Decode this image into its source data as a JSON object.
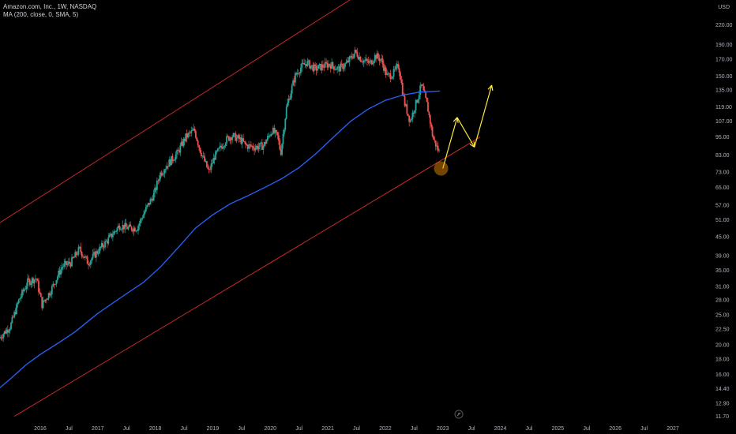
{
  "header": {
    "symbol_line": "Amazon.com, Inc., 1W, NASDAQ",
    "indicator_line": "MA (200, close, 0, SMA, 5)",
    "currency": "USD"
  },
  "colors": {
    "background": "#000000",
    "up": "#26a69a",
    "down": "#ef5350",
    "ma": "#2962ff",
    "channel": "#c62828",
    "projection": "#ffeb3b",
    "highlight": "#ff9800",
    "axis_text": "#b2b5be"
  },
  "chart_data": {
    "type": "candlestick",
    "scale": "log",
    "y_ticks": [
      11.7,
      12.9,
      14.4,
      16.0,
      18.0,
      20.0,
      22.5,
      25.0,
      28.0,
      31.0,
      35.0,
      39.0,
      45.0,
      51.0,
      57.0,
      65.0,
      73.0,
      83.0,
      95.0,
      107.0,
      119.0,
      135.0,
      150.0,
      170.0,
      190.0,
      220.0
    ],
    "ylim": [
      11.0,
      250.0
    ],
    "x_labels": [
      "2016",
      "Jul",
      "2017",
      "Jul",
      "2018",
      "Jul",
      "2019",
      "Jul",
      "2020",
      "Jul",
      "2021",
      "Jul",
      "2022",
      "Jul",
      "2023",
      "Jul",
      "2024",
      "Jul",
      "2025",
      "Jul",
      "2026",
      "Jul",
      "2027"
    ],
    "xlim": [
      2015.3,
      2027.7
    ],
    "price_path": [
      [
        2015.3,
        21
      ],
      [
        2015.5,
        23
      ],
      [
        2015.65,
        28
      ],
      [
        2015.8,
        32
      ],
      [
        2015.95,
        33
      ],
      [
        2016.05,
        27
      ],
      [
        2016.2,
        30
      ],
      [
        2016.4,
        36
      ],
      [
        2016.55,
        37
      ],
      [
        2016.7,
        41
      ],
      [
        2016.85,
        37
      ],
      [
        2017.0,
        40
      ],
      [
        2017.2,
        44
      ],
      [
        2017.4,
        49
      ],
      [
        2017.55,
        48
      ],
      [
        2017.7,
        48
      ],
      [
        2017.85,
        55
      ],
      [
        2018.0,
        62
      ],
      [
        2018.1,
        72
      ],
      [
        2018.25,
        78
      ],
      [
        2018.4,
        84
      ],
      [
        2018.55,
        95
      ],
      [
        2018.7,
        100
      ],
      [
        2018.8,
        86
      ],
      [
        2018.95,
        73
      ],
      [
        2019.05,
        82
      ],
      [
        2019.25,
        93
      ],
      [
        2019.35,
        96
      ],
      [
        2019.5,
        93
      ],
      [
        2019.6,
        89
      ],
      [
        2019.75,
        88
      ],
      [
        2019.9,
        89
      ],
      [
        2020.05,
        100
      ],
      [
        2020.15,
        95
      ],
      [
        2020.2,
        84
      ],
      [
        2020.3,
        118
      ],
      [
        2020.45,
        150
      ],
      [
        2020.55,
        160
      ],
      [
        2020.65,
        166
      ],
      [
        2020.8,
        158
      ],
      [
        2020.95,
        162
      ],
      [
        2021.05,
        164
      ],
      [
        2021.2,
        158
      ],
      [
        2021.35,
        165
      ],
      [
        2021.5,
        180
      ],
      [
        2021.6,
        170
      ],
      [
        2021.75,
        165
      ],
      [
        2021.85,
        175
      ],
      [
        2021.95,
        169
      ],
      [
        2022.05,
        150
      ],
      [
        2022.15,
        152
      ],
      [
        2022.25,
        163
      ],
      [
        2022.35,
        123
      ],
      [
        2022.45,
        107
      ],
      [
        2022.55,
        122
      ],
      [
        2022.65,
        140
      ],
      [
        2022.75,
        120
      ],
      [
        2022.85,
        94
      ],
      [
        2022.95,
        85
      ]
    ],
    "ma_200": [
      [
        2015.3,
        14.5
      ],
      [
        2015.5,
        15.6
      ],
      [
        2015.75,
        17.2
      ],
      [
        2016.0,
        18.6
      ],
      [
        2016.3,
        20.2
      ],
      [
        2016.6,
        22.0
      ],
      [
        2017.0,
        25.3
      ],
      [
        2017.4,
        28.5
      ],
      [
        2017.8,
        32.0
      ],
      [
        2018.1,
        36.0
      ],
      [
        2018.4,
        41.5
      ],
      [
        2018.7,
        48.0
      ],
      [
        2019.0,
        53.0
      ],
      [
        2019.3,
        57.5
      ],
      [
        2019.6,
        61.0
      ],
      [
        2019.9,
        65.0
      ],
      [
        2020.2,
        69.5
      ],
      [
        2020.5,
        75.5
      ],
      [
        2020.8,
        84.0
      ],
      [
        2021.1,
        95.0
      ],
      [
        2021.4,
        107.0
      ],
      [
        2021.7,
        117.0
      ],
      [
        2022.0,
        125.0
      ],
      [
        2022.3,
        130.0
      ],
      [
        2022.6,
        133.0
      ],
      [
        2022.95,
        134.0
      ]
    ],
    "channel_upper": [
      [
        2015.3,
        50
      ],
      [
        2021.95,
        310
      ]
    ],
    "channel_lower": [
      [
        2015.55,
        11.7
      ],
      [
        2023.65,
        95
      ]
    ],
    "projection": [
      [
        2023.0,
        75
      ],
      [
        2023.25,
        110
      ],
      [
        2023.55,
        88
      ],
      [
        2023.85,
        140
      ]
    ],
    "highlight_point": [
      2022.97,
      75
    ]
  }
}
